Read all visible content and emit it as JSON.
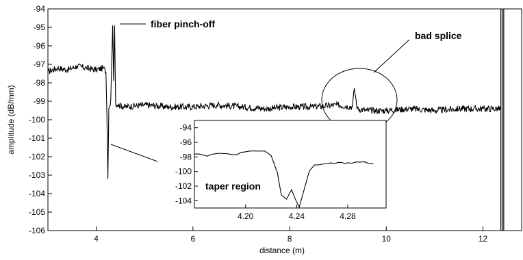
{
  "chart_data": [
    {
      "type": "line",
      "xlabel": "distance (m)",
      "ylabel": "amplitude (dB/mm)",
      "xlim": [
        3.0,
        12.8
      ],
      "ylim": [
        -106,
        -94
      ],
      "x_ticks": [
        4,
        6,
        8,
        10,
        12
      ],
      "y_ticks": [
        -106,
        -105,
        -104,
        -103,
        -102,
        -101,
        -100,
        -99,
        -98,
        -97,
        -96,
        -95,
        -94
      ],
      "grid": false,
      "series": [
        {
          "color": "#000000",
          "x": [
            3.0,
            3.2,
            3.4,
            3.6,
            3.8,
            4.0,
            4.15,
            4.2,
            4.22,
            4.24,
            4.26,
            4.3,
            4.34,
            4.36,
            4.38,
            4.4,
            4.45,
            4.6,
            5.0,
            5.5,
            6.0,
            6.5,
            7.0,
            7.5,
            8.0,
            8.5,
            9.0,
            9.3,
            9.34,
            9.4,
            9.6,
            10.0,
            10.5,
            11.0,
            11.5,
            12.0,
            12.37
          ],
          "y": [
            -97.4,
            -97.2,
            -97.3,
            -97.1,
            -97.2,
            -97.3,
            -97.2,
            -97.4,
            -99.6,
            -103.2,
            -99.4,
            -98.9,
            -94.9,
            -97.9,
            -94.9,
            -99.1,
            -99.2,
            -99.3,
            -99.2,
            -99.3,
            -99.3,
            -99.2,
            -99.3,
            -99.4,
            -99.3,
            -99.3,
            -99.2,
            -99.3,
            -98.3,
            -99.4,
            -99.5,
            -99.5,
            -99.4,
            -99.5,
            -99.4,
            -99.4,
            -99.4
          ]
        }
      ],
      "annotations": {
        "pinch": "fiber pinch-off",
        "splice": "bad splice"
      }
    },
    {
      "type": "line",
      "inset": true,
      "xlim": [
        4.16,
        4.31
      ],
      "ylim": [
        -105,
        -93
      ],
      "x_ticks": [
        4.2,
        4.24,
        4.28
      ],
      "x_tick_labels": [
        "4.20",
        "4.24",
        "4.28"
      ],
      "y_ticks": [
        -104,
        -102,
        -100,
        -98,
        -96,
        -94
      ],
      "series": [
        {
          "color": "#000000",
          "x": [
            4.16,
            4.17,
            4.18,
            4.19,
            4.2,
            4.21,
            4.215,
            4.22,
            4.225,
            4.228,
            4.232,
            4.236,
            4.239,
            4.242,
            4.246,
            4.25,
            4.254,
            4.26,
            4.27,
            4.28,
            4.29,
            4.3
          ],
          "y": [
            -97.6,
            -97.9,
            -97.5,
            -97.7,
            -97.3,
            -97.2,
            -97.2,
            -97.8,
            -100.2,
            -103.2,
            -103.8,
            -102.5,
            -103.8,
            -104.9,
            -102.4,
            -99.9,
            -99.1,
            -99.0,
            -98.9,
            -98.8,
            -98.7,
            -98.9
          ]
        }
      ],
      "annotation": "taper region"
    }
  ]
}
